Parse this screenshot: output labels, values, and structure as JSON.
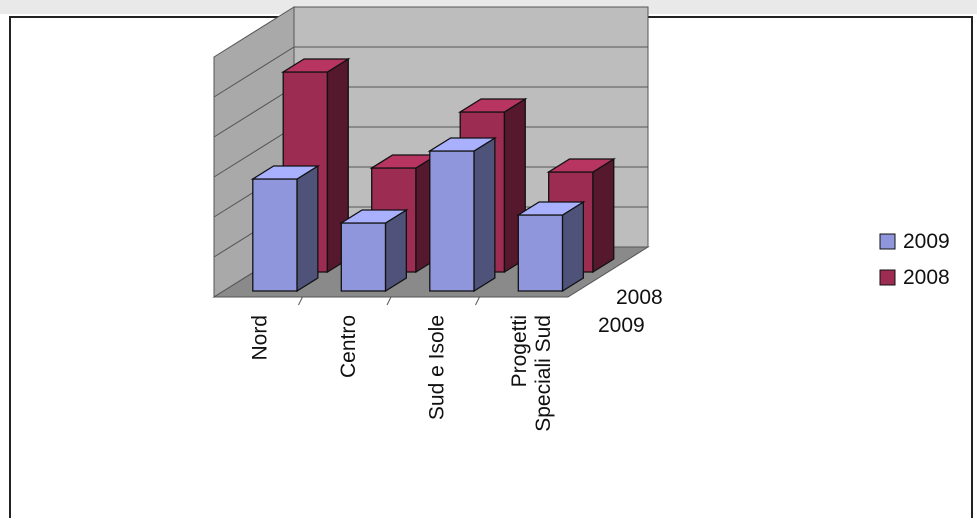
{
  "chart_data": {
    "type": "bar",
    "variant": "3d-column",
    "categories": [
      "Nord",
      "Centro",
      "Sud e Isole",
      "Progetti\nSpeciali Sud"
    ],
    "series": [
      {
        "name": "2009",
        "values": [
          2.8,
          1.7,
          3.5,
          1.9
        ],
        "color": "#8f96dc"
      },
      {
        "name": "2008",
        "values": [
          5.0,
          2.6,
          4.0,
          2.5
        ],
        "color": "#9c2c52"
      }
    ],
    "depth_labels": [
      "2008",
      "2009"
    ],
    "ylim": [
      0,
      6
    ],
    "grid": true,
    "legend": {
      "position": "right",
      "entries": [
        "2009",
        "2008"
      ]
    },
    "title": "",
    "xlabel": "",
    "ylabel": ""
  },
  "colors": {
    "back_wall": "#bdbdbd",
    "side_wall": "#a9a9a9",
    "floor": "#8a8a8a"
  }
}
